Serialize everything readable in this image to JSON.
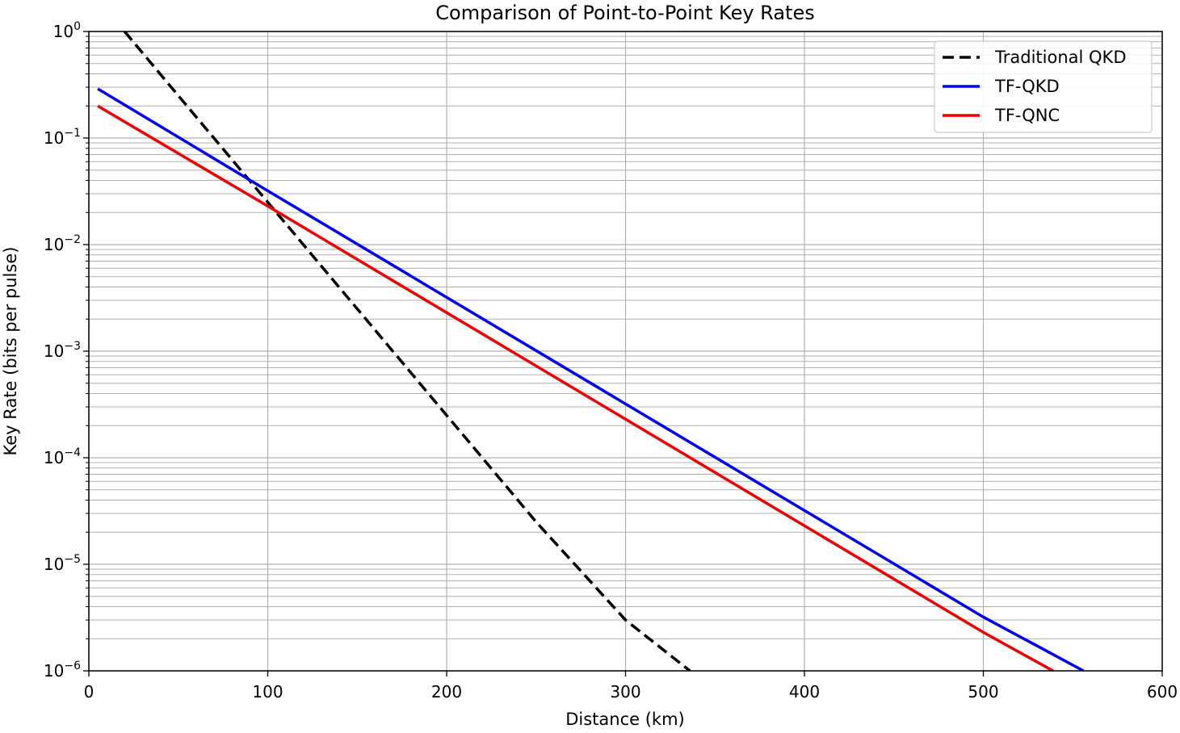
{
  "chart_data": {
    "type": "line",
    "title": "Comparison of Point-to-Point Key Rates",
    "xlabel": "Distance (km)",
    "ylabel": "Key Rate (bits per pulse)",
    "xlim": [
      0,
      600
    ],
    "ylim": [
      1e-06,
      1
    ],
    "yscale": "log",
    "grid": "major and minor",
    "legend_position": "top-right",
    "x_ticks": [
      0,
      100,
      200,
      300,
      400,
      500,
      600
    ],
    "x_tick_labels": [
      "0",
      "100",
      "200",
      "300",
      "400",
      "500",
      "600"
    ],
    "y_ticks": [
      {
        "value": 1,
        "base": "10",
        "exp": "0"
      },
      {
        "value": 0.1,
        "base": "10",
        "exp": "−1"
      },
      {
        "value": 0.01,
        "base": "10",
        "exp": "−2"
      },
      {
        "value": 0.001,
        "base": "10",
        "exp": "−3"
      },
      {
        "value": 0.0001,
        "base": "10",
        "exp": "−4"
      },
      {
        "value": 1e-05,
        "base": "10",
        "exp": "−5"
      },
      {
        "value": 1e-06,
        "base": "10",
        "exp": "−6"
      }
    ],
    "series": [
      {
        "name": "Traditional QKD",
        "color": "#000000",
        "style": "dashed",
        "x": [
          20,
          50,
          100,
          150,
          200,
          250,
          300,
          336
        ],
        "y": [
          1.0,
          0.25,
          0.025,
          0.0025,
          0.00025,
          2.5e-05,
          3e-06,
          1e-06
        ]
      },
      {
        "name": "TF-QKD",
        "color": "#0000ee",
        "style": "solid",
        "x": [
          5,
          100,
          200,
          300,
          400,
          500,
          556
        ],
        "y": [
          0.29,
          0.032,
          0.0032,
          0.00032,
          3.2e-05,
          3.2e-06,
          1e-06
        ]
      },
      {
        "name": "TF-QNC",
        "color": "#ee0000",
        "style": "solid",
        "x": [
          5,
          100,
          200,
          300,
          400,
          500,
          539
        ],
        "y": [
          0.2,
          0.023,
          0.0023,
          0.00023,
          2.3e-05,
          2.3e-06,
          1e-06
        ]
      }
    ]
  }
}
